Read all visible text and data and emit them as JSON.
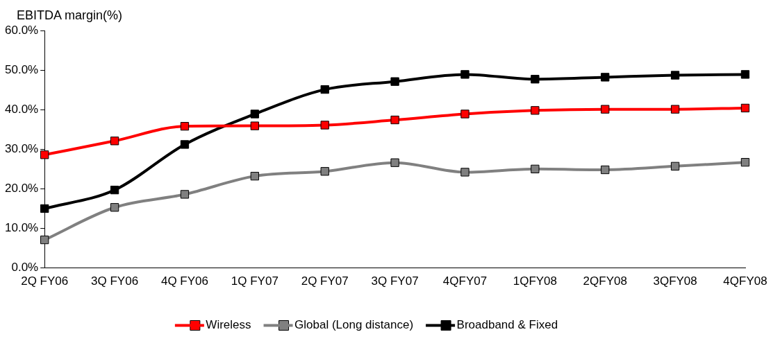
{
  "chart_data": {
    "type": "line",
    "ylabel": "EBITDA margin(%)",
    "categories": [
      "2Q FY06",
      "3Q FY06",
      "4Q FY06",
      "1Q FY07",
      "2Q FY07",
      "3Q FY07",
      "4QFY07",
      "1QFY08",
      "2QFY08",
      "3QFY08",
      "4QFY08"
    ],
    "series": [
      {
        "name": "Wireless",
        "color": "#ff0000",
        "values": [
          28.6,
          32.1,
          35.8,
          35.9,
          36.1,
          37.4,
          38.9,
          39.8,
          40.1,
          40.1,
          40.4
        ]
      },
      {
        "name": "Global (Long distance)",
        "color": "#808080",
        "values": [
          7.1,
          15.3,
          18.6,
          23.2,
          24.4,
          26.6,
          24.2,
          25.0,
          24.8,
          25.7,
          26.7
        ]
      },
      {
        "name": "Broadband & Fixed",
        "color": "#000000",
        "values": [
          15.0,
          19.7,
          31.2,
          38.9,
          45.1,
          47.1,
          48.9,
          47.7,
          48.2,
          48.7,
          48.9
        ]
      }
    ],
    "ylim": [
      0,
      60
    ],
    "yticks": [
      {
        "value": 0,
        "label": "0.0%"
      },
      {
        "value": 10,
        "label": "10.0%"
      },
      {
        "value": 20,
        "label": "20.0%"
      },
      {
        "value": 30,
        "label": "30.0%"
      },
      {
        "value": 40,
        "label": "40.0%"
      },
      {
        "value": 50,
        "label": "50.0%"
      },
      {
        "value": 60,
        "label": "60.0%"
      }
    ],
    "grid": false,
    "legend": "bottom",
    "marker": "square",
    "line_style": "solid"
  }
}
